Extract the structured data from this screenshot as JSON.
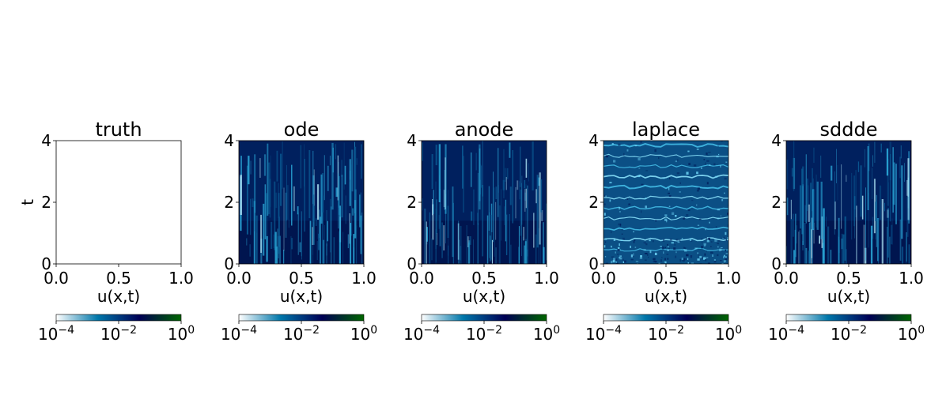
{
  "chart_data": [
    {
      "type": "heatmap",
      "title": "truth",
      "xlabel": "u(x,t)",
      "ylabel": "t",
      "xlim": [
        0,
        1
      ],
      "ylim": [
        0,
        4
      ],
      "xticks": [
        "0.0",
        "0.5",
        "1.0"
      ],
      "yticks": [
        "0",
        "2",
        "4"
      ],
      "pattern": "blank",
      "colorbar": {
        "scale": "log",
        "range": [
          0.0001,
          1
        ],
        "ticks": [
          {
            "base": "10",
            "exp": "−4"
          },
          {
            "base": "10",
            "exp": "−2"
          },
          {
            "base": "10",
            "exp": "0"
          }
        ]
      }
    },
    {
      "type": "heatmap",
      "title": "ode",
      "xlabel": "u(x,t)",
      "ylabel": "",
      "xlim": [
        0,
        1
      ],
      "ylim": [
        0,
        4
      ],
      "xticks": [
        "0.0",
        "0.5",
        "1.0"
      ],
      "yticks": [
        "0",
        "2",
        "4"
      ],
      "pattern": "vertical-streaks",
      "colorbar": {
        "scale": "log",
        "range": [
          0.0001,
          1
        ],
        "ticks": [
          {
            "base": "10",
            "exp": "−4"
          },
          {
            "base": "10",
            "exp": "−2"
          },
          {
            "base": "10",
            "exp": "0"
          }
        ]
      }
    },
    {
      "type": "heatmap",
      "title": "anode",
      "xlabel": "u(x,t)",
      "ylabel": "",
      "xlim": [
        0,
        1
      ],
      "ylim": [
        0,
        4
      ],
      "xticks": [
        "0.0",
        "0.5",
        "1.0"
      ],
      "yticks": [
        "0",
        "2",
        "4"
      ],
      "pattern": "vertical-streaks",
      "colorbar": {
        "scale": "log",
        "range": [
          0.0001,
          1
        ],
        "ticks": [
          {
            "base": "10",
            "exp": "−4"
          },
          {
            "base": "10",
            "exp": "−2"
          },
          {
            "base": "10",
            "exp": "0"
          }
        ]
      }
    },
    {
      "type": "heatmap",
      "title": "laplace",
      "xlabel": "u(x,t)",
      "ylabel": "",
      "xlim": [
        0,
        1
      ],
      "ylim": [
        0,
        4
      ],
      "xticks": [
        "0.0",
        "0.5",
        "1.0"
      ],
      "yticks": [
        "0",
        "2",
        "4"
      ],
      "pattern": "horizontal-bands",
      "colorbar": {
        "scale": "log",
        "range": [
          0.0001,
          1
        ],
        "ticks": [
          {
            "base": "10",
            "exp": "−4"
          },
          {
            "base": "10",
            "exp": "−2"
          },
          {
            "base": "10",
            "exp": "0"
          }
        ]
      }
    },
    {
      "type": "heatmap",
      "title": "sddde",
      "xlabel": "u(x,t)",
      "ylabel": "",
      "xlim": [
        0,
        1
      ],
      "ylim": [
        0,
        4
      ],
      "xticks": [
        "0.0",
        "0.5",
        "1.0"
      ],
      "yticks": [
        "0",
        "2",
        "4"
      ],
      "pattern": "vertical-streaks",
      "colorbar": {
        "scale": "log",
        "range": [
          0.0001,
          1
        ],
        "ticks": [
          {
            "base": "10",
            "exp": "−4"
          },
          {
            "base": "10",
            "exp": "−2"
          },
          {
            "base": "10",
            "exp": "0"
          }
        ]
      }
    }
  ],
  "colormap": [
    "#ffffff",
    "#0077aa",
    "#000055",
    "#006600"
  ]
}
